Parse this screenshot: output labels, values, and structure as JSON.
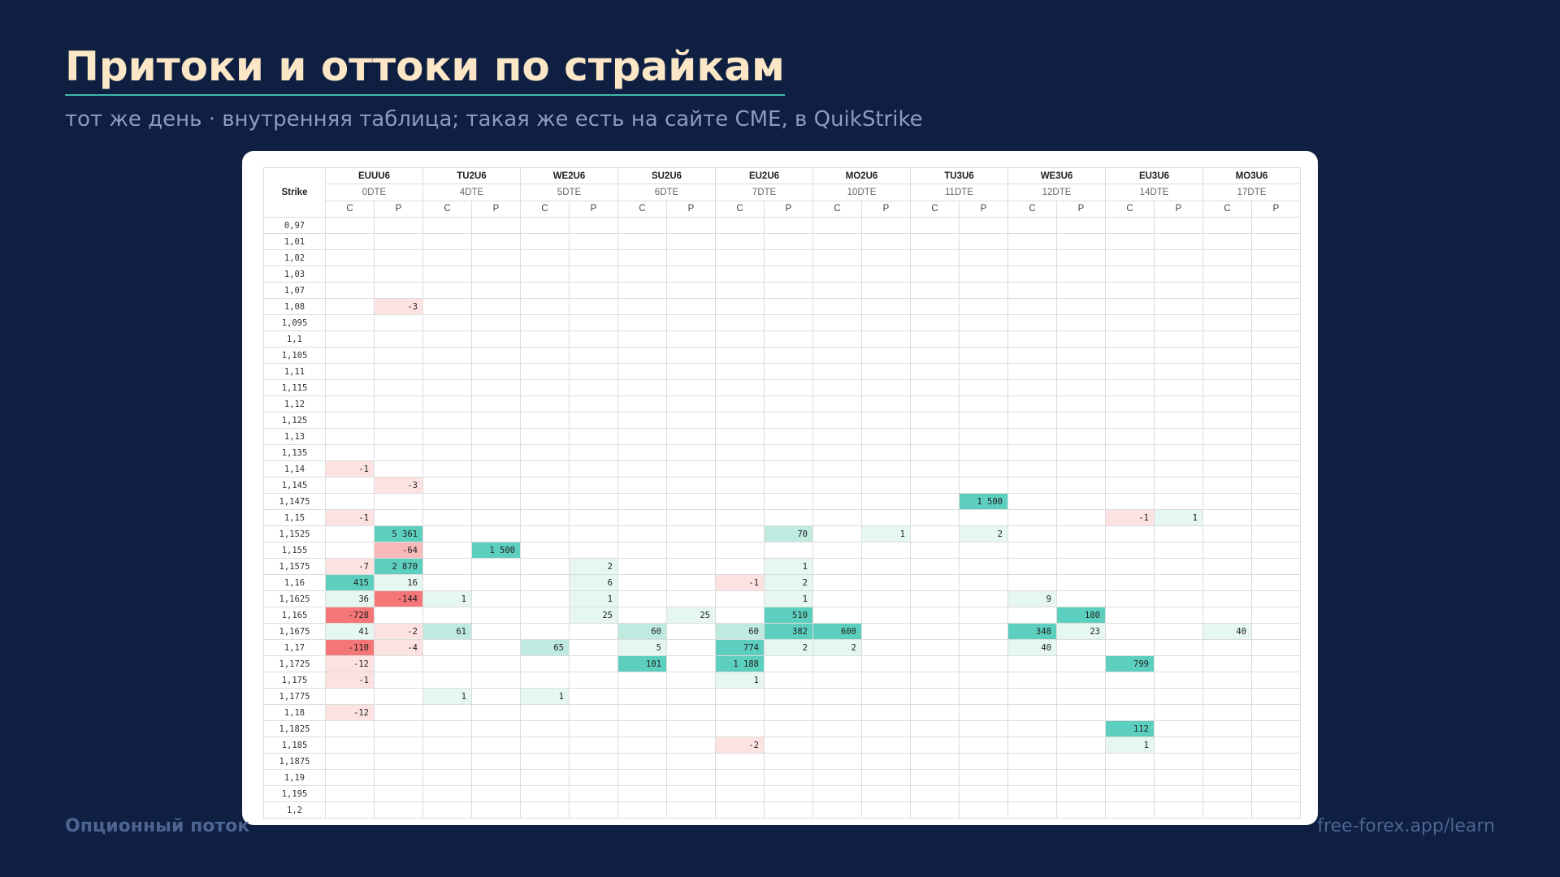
{
  "slide": {
    "title": "Притоки и оттоки по страйкам",
    "subtitle": "тот же день · внутренняя таблица; такая же есть на сайте CME, в QuikStrike",
    "footer_left": "Опционный поток",
    "footer_right": "free-forex.app/learn"
  },
  "table": {
    "strike_label": "Strike",
    "side_labels": [
      "C",
      "P"
    ],
    "expiries": [
      {
        "code": "EUUU6",
        "dte": "0DTE"
      },
      {
        "code": "TU2U6",
        "dte": "4DTE"
      },
      {
        "code": "WE2U6",
        "dte": "5DTE"
      },
      {
        "code": "SU2U6",
        "dte": "6DTE"
      },
      {
        "code": "EU2U6",
        "dte": "7DTE"
      },
      {
        "code": "MO2U6",
        "dte": "10DTE"
      },
      {
        "code": "TU3U6",
        "dte": "11DTE"
      },
      {
        "code": "WE3U6",
        "dte": "12DTE"
      },
      {
        "code": "EU3U6",
        "dte": "14DTE"
      },
      {
        "code": "MO3U6",
        "dte": "17DTE"
      }
    ],
    "rows": [
      {
        "strike": "0,97",
        "cells": [
          "",
          "",
          "",
          "",
          "",
          "",
          "",
          "",
          "",
          "",
          "",
          "",
          "",
          "",
          "",
          "",
          "",
          "",
          "",
          ""
        ]
      },
      {
        "strike": "1,01",
        "cells": [
          "",
          "",
          "",
          "",
          "",
          "",
          "",
          "",
          "",
          "",
          "",
          "",
          "",
          "",
          "",
          "",
          "",
          "",
          "",
          ""
        ]
      },
      {
        "strike": "1,02",
        "cells": [
          "",
          "",
          "",
          "",
          "",
          "",
          "",
          "",
          "",
          "",
          "",
          "",
          "",
          "",
          "",
          "",
          "",
          "",
          "",
          ""
        ]
      },
      {
        "strike": "1,03",
        "cells": [
          "",
          "",
          "",
          "",
          "",
          "",
          "",
          "",
          "",
          "",
          "",
          "",
          "",
          "",
          "",
          "",
          "",
          "",
          "",
          ""
        ]
      },
      {
        "strike": "1,07",
        "cells": [
          "",
          "",
          "",
          "",
          "",
          "",
          "",
          "",
          "",
          "",
          "",
          "",
          "",
          "",
          "",
          "",
          "",
          "",
          "",
          ""
        ]
      },
      {
        "strike": "1,08",
        "cells": [
          "",
          "-3",
          "",
          "",
          "",
          "",
          "",
          "",
          "",
          "",
          "",
          "",
          "",
          "",
          "",
          "",
          "",
          "",
          "",
          ""
        ]
      },
      {
        "strike": "1,095",
        "cells": [
          "",
          "",
          "",
          "",
          "",
          "",
          "",
          "",
          "",
          "",
          "",
          "",
          "",
          "",
          "",
          "",
          "",
          "",
          "",
          ""
        ]
      },
      {
        "strike": "1,1",
        "cells": [
          "",
          "",
          "",
          "",
          "",
          "",
          "",
          "",
          "",
          "",
          "",
          "",
          "",
          "",
          "",
          "",
          "",
          "",
          "",
          ""
        ]
      },
      {
        "strike": "1,105",
        "cells": [
          "",
          "",
          "",
          "",
          "",
          "",
          "",
          "",
          "",
          "",
          "",
          "",
          "",
          "",
          "",
          "",
          "",
          "",
          "",
          ""
        ]
      },
      {
        "strike": "1,11",
        "cells": [
          "",
          "",
          "",
          "",
          "",
          "",
          "",
          "",
          "",
          "",
          "",
          "",
          "",
          "",
          "",
          "",
          "",
          "",
          "",
          ""
        ]
      },
      {
        "strike": "1,115",
        "cells": [
          "",
          "",
          "",
          "",
          "",
          "",
          "",
          "",
          "",
          "",
          "",
          "",
          "",
          "",
          "",
          "",
          "",
          "",
          "",
          ""
        ]
      },
      {
        "strike": "1,12",
        "cells": [
          "",
          "",
          "",
          "",
          "",
          "",
          "",
          "",
          "",
          "",
          "",
          "",
          "",
          "",
          "",
          "",
          "",
          "",
          "",
          ""
        ]
      },
      {
        "strike": "1,125",
        "cells": [
          "",
          "",
          "",
          "",
          "",
          "",
          "",
          "",
          "",
          "",
          "",
          "",
          "",
          "",
          "",
          "",
          "",
          "",
          "",
          ""
        ]
      },
      {
        "strike": "1,13",
        "cells": [
          "",
          "",
          "",
          "",
          "",
          "",
          "",
          "",
          "",
          "",
          "",
          "",
          "",
          "",
          "",
          "",
          "",
          "",
          "",
          ""
        ]
      },
      {
        "strike": "1,135",
        "cells": [
          "",
          "",
          "",
          "",
          "",
          "",
          "",
          "",
          "",
          "",
          "",
          "",
          "",
          "",
          "",
          "",
          "",
          "",
          "",
          ""
        ]
      },
      {
        "strike": "1,14",
        "cells": [
          "-1",
          "",
          "",
          "",
          "",
          "",
          "",
          "",
          "",
          "",
          "",
          "",
          "",
          "",
          "",
          "",
          "",
          "",
          "",
          ""
        ]
      },
      {
        "strike": "1,145",
        "cells": [
          "",
          "-3",
          "",
          "",
          "",
          "",
          "",
          "",
          "",
          "",
          "",
          "",
          "",
          "",
          "",
          "",
          "",
          "",
          "",
          ""
        ]
      },
      {
        "strike": "1,1475",
        "cells": [
          "",
          "",
          "",
          "",
          "",
          "",
          "",
          "",
          "",
          "",
          "",
          "",
          "",
          "1 500",
          "",
          "",
          "",
          "",
          "",
          ""
        ]
      },
      {
        "strike": "1,15",
        "cells": [
          "-1",
          "",
          "",
          "",
          "",
          "",
          "",
          "",
          "",
          "",
          "",
          "",
          "",
          "",
          "",
          "",
          "-1",
          "1",
          "",
          ""
        ]
      },
      {
        "strike": "1,1525",
        "cells": [
          "",
          "5 361",
          "",
          "",
          "",
          "",
          "",
          "",
          "",
          "70",
          "",
          "1",
          "",
          "2",
          "",
          "",
          "",
          "",
          "",
          ""
        ]
      },
      {
        "strike": "1,155",
        "cells": [
          "",
          "-64",
          "",
          "1 500",
          "",
          "",
          "",
          "",
          "",
          "",
          "",
          "",
          "",
          "",
          "",
          "",
          "",
          "",
          "",
          ""
        ]
      },
      {
        "strike": "1,1575",
        "cells": [
          "-7",
          "2 870",
          "",
          "",
          "",
          "2",
          "",
          "",
          "",
          "1",
          "",
          "",
          "",
          "",
          "",
          "",
          "",
          "",
          "",
          ""
        ]
      },
      {
        "strike": "1,16",
        "cells": [
          "415",
          "16",
          "",
          "",
          "",
          "6",
          "",
          "",
          "-1",
          "2",
          "",
          "",
          "",
          "",
          "",
          "",
          "",
          "",
          "",
          ""
        ]
      },
      {
        "strike": "1,1625",
        "cells": [
          "36",
          "-144",
          "1",
          "",
          "",
          "1",
          "",
          "",
          "",
          "1",
          "",
          "",
          "",
          "",
          "9",
          "",
          "",
          "",
          "",
          ""
        ]
      },
      {
        "strike": "1,165",
        "cells": [
          "-728",
          "",
          "",
          "",
          "",
          "25",
          "",
          "25",
          "",
          "510",
          "",
          "",
          "",
          "",
          "",
          "180",
          "",
          "",
          "",
          ""
        ]
      },
      {
        "strike": "1,1675",
        "cells": [
          "41",
          "-2",
          "61",
          "",
          "",
          "",
          "60",
          "",
          "60",
          "382",
          "600",
          "",
          "",
          "",
          "348",
          "23",
          "",
          "",
          "40",
          ""
        ]
      },
      {
        "strike": "1,17",
        "cells": [
          "-110",
          "-4",
          "",
          "",
          "65",
          "",
          "5",
          "",
          "774",
          "2",
          "2",
          "",
          "",
          "",
          "40",
          "",
          "",
          "",
          "",
          ""
        ]
      },
      {
        "strike": "1,1725",
        "cells": [
          "-12",
          "",
          "",
          "",
          "",
          "",
          "101",
          "",
          "1 188",
          "",
          "",
          "",
          "",
          "",
          "",
          "",
          "799",
          "",
          "",
          ""
        ]
      },
      {
        "strike": "1,175",
        "cells": [
          "-1",
          "",
          "",
          "",
          "",
          "",
          "",
          "",
          "1",
          "",
          "",
          "",
          "",
          "",
          "",
          "",
          "",
          "",
          "",
          ""
        ]
      },
      {
        "strike": "1,1775",
        "cells": [
          "",
          "",
          "1",
          "",
          "1",
          "",
          "",
          "",
          "",
          "",
          "",
          "",
          "",
          "",
          "",
          "",
          "",
          "",
          "",
          ""
        ]
      },
      {
        "strike": "1,18",
        "cells": [
          "-12",
          "",
          "",
          "",
          "",
          "",
          "",
          "",
          "",
          "",
          "",
          "",
          "",
          "",
          "",
          "",
          "",
          "",
          "",
          ""
        ]
      },
      {
        "strike": "1,1825",
        "cells": [
          "",
          "",
          "",
          "",
          "",
          "",
          "",
          "",
          "",
          "",
          "",
          "",
          "",
          "",
          "",
          "",
          "112",
          "",
          "",
          ""
        ]
      },
      {
        "strike": "1,185",
        "cells": [
          "",
          "",
          "",
          "",
          "",
          "",
          "",
          "",
          "-2",
          "",
          "",
          "",
          "",
          "",
          "",
          "",
          "1",
          "",
          "",
          ""
        ]
      },
      {
        "strike": "1,1875",
        "cells": [
          "",
          "",
          "",
          "",
          "",
          "",
          "",
          "",
          "",
          "",
          "",
          "",
          "",
          "",
          "",
          "",
          "",
          "",
          "",
          ""
        ]
      },
      {
        "strike": "1,19",
        "cells": [
          "",
          "",
          "",
          "",
          "",
          "",
          "",
          "",
          "",
          "",
          "",
          "",
          "",
          "",
          "",
          "",
          "",
          "",
          "",
          ""
        ]
      },
      {
        "strike": "1,195",
        "cells": [
          "",
          "",
          "",
          "",
          "",
          "",
          "",
          "",
          "",
          "",
          "",
          "",
          "",
          "",
          "",
          "",
          "",
          "",
          "",
          ""
        ]
      },
      {
        "strike": "1,2",
        "cells": [
          "",
          "",
          "",
          "",
          "",
          "",
          "",
          "",
          "",
          "",
          "",
          "",
          "",
          "",
          "",
          "",
          "",
          "",
          "",
          ""
        ]
      }
    ],
    "colors": {
      "positive_light": "#e6f6f1",
      "positive_mid": "#bfeadf",
      "positive_strong": "#5ccfbe",
      "negative_light": "#fde2e2",
      "negative_mid": "#f8b9b9",
      "negative_strong": "#f57676"
    }
  }
}
